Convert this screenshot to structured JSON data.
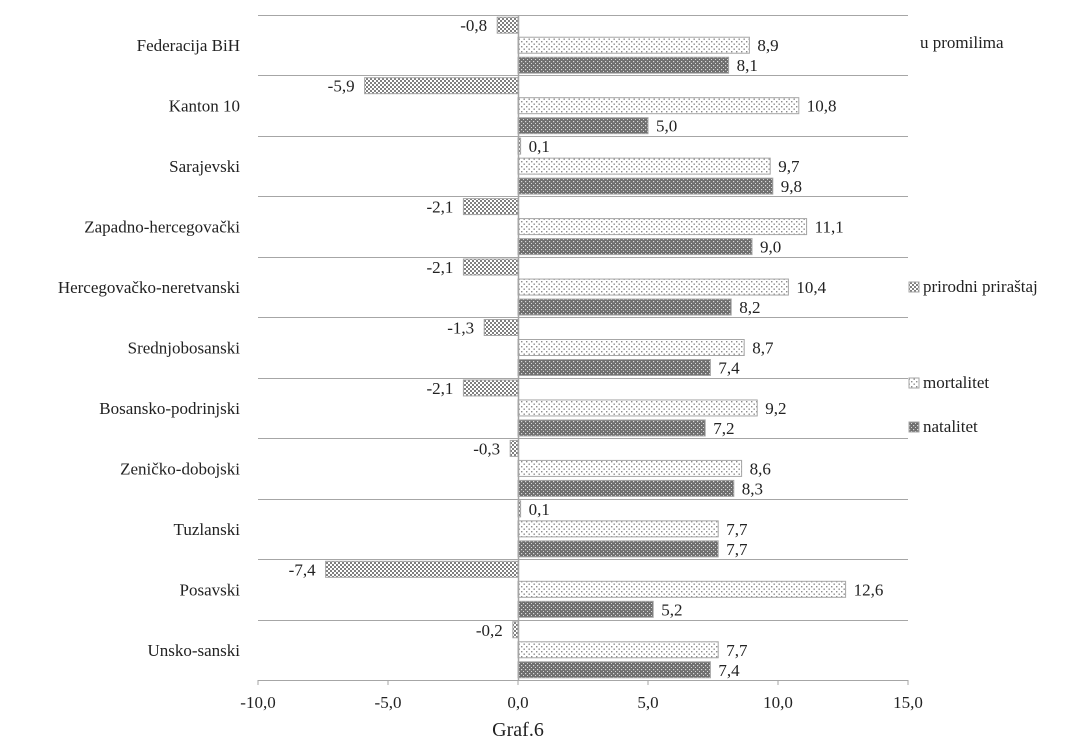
{
  "caption": "Graf.6",
  "unit_note": "u promilima",
  "chart_data": {
    "type": "bar",
    "orientation": "horizontal",
    "categories": [
      "Federacija BiH",
      "Kanton 10",
      "Sarajevski",
      "Zapadno-hercegovački",
      "Hercegovačko-neretvanski",
      "Srednjobosanski",
      "Bosansko-podrinjski",
      "Zeničko-dobojski",
      "Tuzlanski",
      "Posavski",
      "Unsko-sanski"
    ],
    "series": [
      {
        "name": "prirodni priraštaj",
        "values": [
          -0.8,
          -5.9,
          0.1,
          -2.1,
          -2.1,
          -1.3,
          -2.1,
          -0.3,
          0.1,
          -7.4,
          -0.2
        ],
        "labels": [
          "-0,8",
          "-5,9",
          "0,1",
          "-2,1",
          "-2,1",
          "-1,3",
          "-2,1",
          "-0,3",
          "0,1",
          "-7,4",
          "-0,2"
        ],
        "pattern": "checker"
      },
      {
        "name": "mortalitet",
        "values": [
          8.9,
          10.8,
          9.7,
          11.1,
          10.4,
          8.7,
          9.2,
          8.6,
          7.7,
          12.6,
          7.7
        ],
        "labels": [
          "8,9",
          "10,8",
          "9,7",
          "11,1",
          "10,4",
          "8,7",
          "9,2",
          "8,6",
          "7,7",
          "12,6",
          "7,7"
        ],
        "pattern": "dots"
      },
      {
        "name": "natalitet",
        "values": [
          8.1,
          5.0,
          9.8,
          9.0,
          8.2,
          7.4,
          7.2,
          8.3,
          7.7,
          5.2,
          7.4
        ],
        "labels": [
          "8,1",
          "5,0",
          "9,8",
          "9,0",
          "8,2",
          "7,4",
          "7,2",
          "8,3",
          "7,7",
          "5,2",
          "7,4"
        ],
        "pattern": "dense"
      }
    ],
    "xlim": [
      -10,
      15
    ],
    "xticks": [
      -10,
      -5,
      0,
      5,
      10,
      15
    ],
    "xtick_labels": [
      "-10,0",
      "-5,0",
      "0,0",
      "5,0",
      "10,0",
      "15,0"
    ],
    "legend_position": "right",
    "legend_order": [
      "prirodni priraštaj",
      "mortalitet",
      "natalitet"
    ],
    "grid": "horizontal category separators",
    "colors": {
      "bar_border": "#a6a6a6",
      "pattern_ink": "#7f7f7f",
      "axis": "#a6a6a6",
      "text": "#222222"
    }
  }
}
